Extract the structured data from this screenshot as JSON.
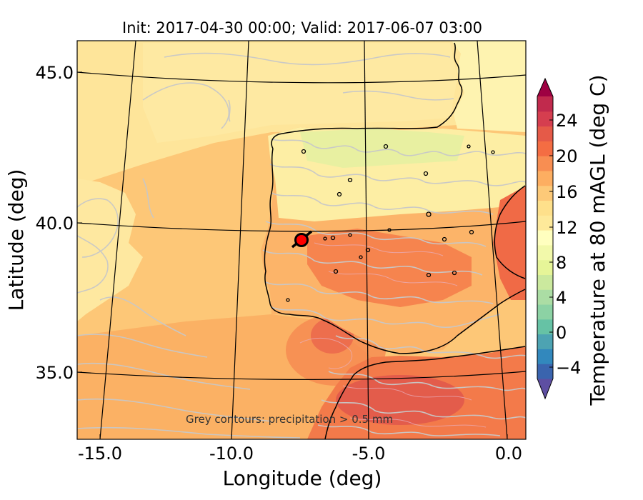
{
  "title": "Init: 2017-04-30 00:00; Valid: 2017-06-07 03:00",
  "xlabel": "Longitude (deg)",
  "ylabel": "Latitude (deg)",
  "x_ticks": [
    "-15.0",
    "-10.0",
    "-5.0",
    "0.0"
  ],
  "y_ticks": [
    "45.0",
    "40.0",
    "35.0"
  ],
  "colorbar": {
    "label": "Temperature at 80 mAGL (deg C)",
    "ticks": [
      "24",
      "20",
      "16",
      "12",
      "8",
      "4",
      "0",
      "−4"
    ],
    "colors": [
      "#5e4fa2",
      "#3a64ae",
      "#3288bd",
      "#4da3b2",
      "#66c2a5",
      "#8cd2a4",
      "#abdda4",
      "#cbe99e",
      "#e6f598",
      "#f2f9aa",
      "#ffffbf",
      "#fee99a",
      "#fee08b",
      "#fdc978",
      "#fdae61",
      "#f88e52",
      "#f46d43",
      "#e55a48",
      "#d53e4f",
      "#c12a4d",
      "#9e0142"
    ]
  },
  "annotation": "Grey contours: precipitation > 0.5 mm",
  "marker_icon": "location-marker-icon"
}
